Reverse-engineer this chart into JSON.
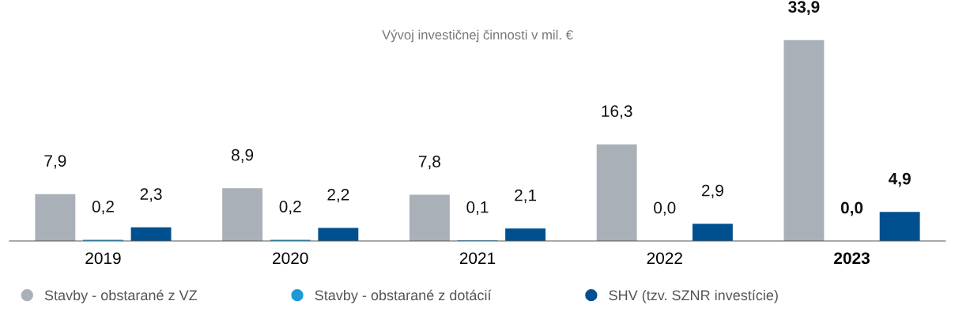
{
  "chart_data": {
    "type": "bar",
    "title": "Vývoj investičnej činnosti v mil. €",
    "categories": [
      "2019",
      "2020",
      "2021",
      "2022",
      "2023"
    ],
    "series": [
      {
        "name": "Stavby - obstarané z VZ",
        "color": "#a9b0b7",
        "values": [
          7.9,
          8.9,
          7.8,
          16.3,
          33.9
        ],
        "value_labels": [
          "7,9",
          "8,9",
          "7,8",
          "16,3",
          "33,9"
        ]
      },
      {
        "name": "Stavby - obstarané z dotácií",
        "color": "#1a9ad6",
        "values": [
          0.2,
          0.2,
          0.1,
          0.0,
          0.0
        ],
        "value_labels": [
          "0,2",
          "0,2",
          "0,1",
          "0,0",
          "0,0"
        ]
      },
      {
        "name": "SHV (tzv. SZNR investície)",
        "color": "#00508f",
        "values": [
          2.3,
          2.2,
          2.1,
          2.9,
          4.9
        ],
        "value_labels": [
          "2,3",
          "2,2",
          "2,1",
          "2,9",
          "4,9"
        ]
      }
    ],
    "legend": "bottom left",
    "grid": false
  }
}
